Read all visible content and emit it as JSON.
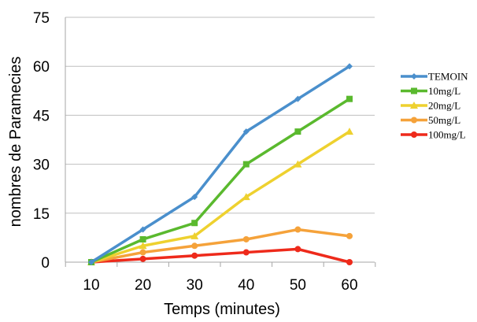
{
  "chart_data": {
    "type": "line",
    "xlabel": "Temps (minutes)",
    "ylabel": "nombres de  Paramecies",
    "x": [
      10,
      20,
      30,
      40,
      50,
      60
    ],
    "ylim": [
      0,
      75
    ],
    "yticks": [
      0,
      15,
      30,
      45,
      60,
      75
    ],
    "grid": "horizontal",
    "legend_position": "right",
    "series": [
      {
        "name": "TEMOIN",
        "color": "#4A8FCC",
        "marker": "diamond",
        "values": [
          0,
          10,
          20,
          40,
          50,
          60
        ]
      },
      {
        "name": "10mg/L",
        "color": "#5AB92E",
        "marker": "square",
        "values": [
          0,
          7,
          12,
          30,
          40,
          50
        ]
      },
      {
        "name": "20mg/L",
        "color": "#EED12F",
        "marker": "triangle",
        "values": [
          0,
          5,
          8,
          20,
          30,
          40
        ]
      },
      {
        "name": "50mg/L",
        "color": "#F5A23A",
        "marker": "circle",
        "values": [
          0,
          3,
          5,
          7,
          10,
          8
        ]
      },
      {
        "name": "100mg/L",
        "color": "#EE2A1B",
        "marker": "circle",
        "values": [
          0,
          1,
          2,
          3,
          4,
          0
        ]
      }
    ]
  }
}
